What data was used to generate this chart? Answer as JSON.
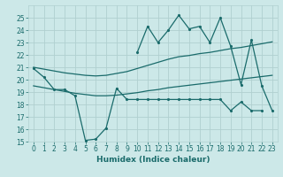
{
  "xlabel": "Humidex (Indice chaleur)",
  "background_color": "#cce8e8",
  "grid_color": "#b0d0d0",
  "line_color": "#1a6b6b",
  "xlim": [
    -0.5,
    23.5
  ],
  "ylim": [
    15,
    26
  ],
  "yticks": [
    15,
    16,
    17,
    18,
    19,
    20,
    21,
    22,
    23,
    24,
    25
  ],
  "xticks": [
    0,
    1,
    2,
    3,
    4,
    5,
    6,
    7,
    8,
    9,
    10,
    11,
    12,
    13,
    14,
    15,
    16,
    17,
    18,
    19,
    20,
    21,
    22,
    23
  ],
  "x": [
    0,
    1,
    2,
    3,
    4,
    5,
    6,
    7,
    8,
    9,
    10,
    11,
    12,
    13,
    14,
    15,
    16,
    17,
    18,
    19,
    20,
    21,
    22,
    23
  ],
  "line_upper": [
    21.0,
    20.85,
    20.7,
    20.55,
    20.45,
    20.35,
    20.3,
    20.35,
    20.5,
    20.65,
    20.9,
    21.15,
    21.4,
    21.65,
    21.85,
    21.95,
    22.1,
    22.2,
    22.35,
    22.5,
    22.6,
    22.75,
    22.9,
    23.05
  ],
  "line_lower": [
    19.5,
    19.35,
    19.2,
    19.05,
    18.9,
    18.8,
    18.7,
    18.7,
    18.75,
    18.85,
    18.95,
    19.1,
    19.2,
    19.35,
    19.45,
    19.55,
    19.65,
    19.75,
    19.85,
    19.95,
    20.05,
    20.15,
    20.25,
    20.35
  ],
  "line_zigzag": [
    20.9,
    20.2,
    19.2,
    19.2,
    18.7,
    15.1,
    15.2,
    16.1,
    19.3,
    18.4,
    18.4,
    18.4,
    18.4,
    18.4,
    18.4,
    18.4,
    18.4,
    18.4,
    18.4,
    17.5,
    18.2,
    17.5,
    17.5,
    null
  ],
  "line_top": [
    null,
    null,
    null,
    null,
    null,
    null,
    null,
    null,
    null,
    null,
    22.2,
    24.3,
    23.0,
    24.0,
    25.2,
    24.1,
    24.3,
    23.0,
    25.0,
    22.7,
    19.6,
    23.2,
    19.5,
    17.5
  ]
}
